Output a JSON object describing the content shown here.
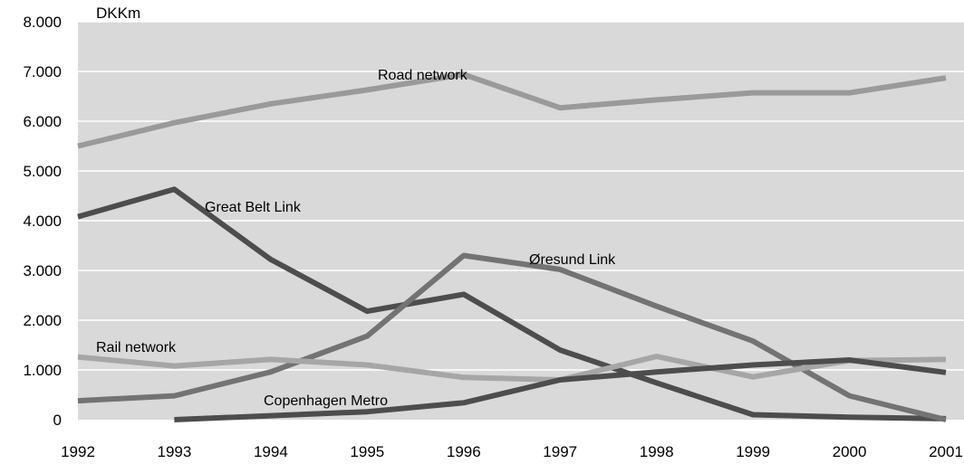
{
  "chart_data": {
    "type": "line",
    "ylabel": "DKKm",
    "x": [
      1992,
      1993,
      1994,
      1995,
      1996,
      1997,
      1998,
      1999,
      2000,
      2001
    ],
    "x_tick_labels": [
      "1992",
      "1993",
      "1994",
      "1995",
      "1996",
      "1997",
      "1998",
      "1999",
      "2000",
      "2001"
    ],
    "ylim": [
      0,
      8000
    ],
    "y_ticks": [
      0,
      1000,
      2000,
      3000,
      4000,
      5000,
      6000,
      7000,
      8000
    ],
    "y_tick_labels": [
      "0",
      "1.000",
      "2.000",
      "3.000",
      "4.000",
      "5.000",
      "6.000",
      "7.000",
      "8.000"
    ],
    "grid": true,
    "legend": "inline labels",
    "series": [
      {
        "name": "Road network",
        "color": "#9a9a9a",
        "values": [
          5500,
          5970,
          6350,
          6630,
          6940,
          6270,
          6430,
          6570,
          6570,
          6870
        ]
      },
      {
        "name": "Great Belt Link",
        "color": "#4d4d4d",
        "values": [
          4080,
          4630,
          3220,
          2180,
          2520,
          1400,
          740,
          100,
          50,
          20
        ]
      },
      {
        "name": "Øresund Link",
        "color": "#737373",
        "values": [
          380,
          480,
          960,
          1680,
          3300,
          3020,
          2280,
          1580,
          480,
          0
        ]
      },
      {
        "name": "Rail network",
        "color": "#a6a6a6",
        "values": [
          1260,
          1080,
          1210,
          1100,
          850,
          800,
          1270,
          860,
          1190,
          1210
        ]
      },
      {
        "name": "Copenhagen Metro",
        "color": "#4d4d4d",
        "values": [
          null,
          0,
          80,
          160,
          340,
          800,
          960,
          1100,
          1200,
          950
        ]
      }
    ]
  }
}
